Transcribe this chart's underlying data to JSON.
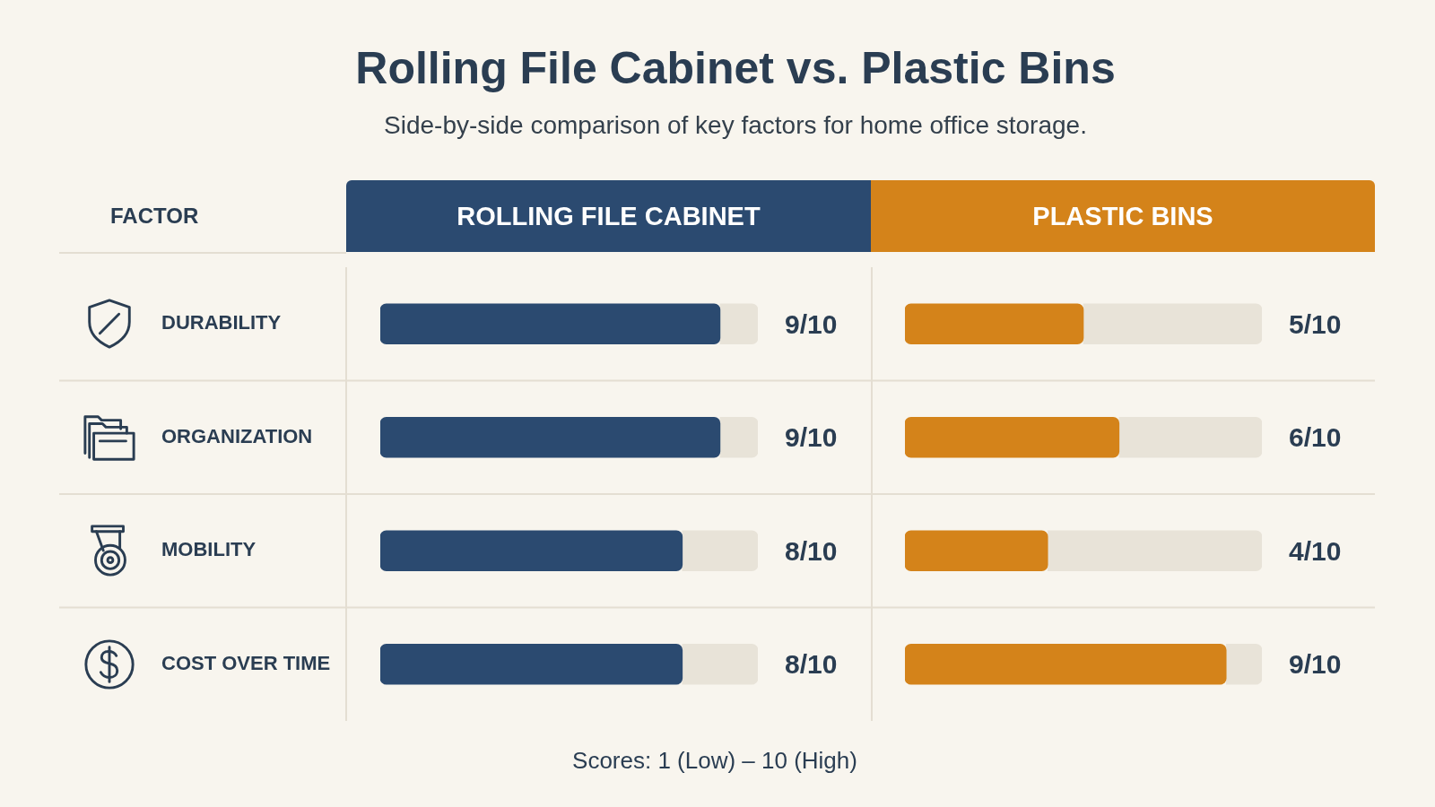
{
  "chart_data": [
    {
      "type": "bar",
      "orientation": "horizontal",
      "stacked": true,
      "title": "Rolling File Cabinet vs. Plastic Bins",
      "subtitle": "Side-by-side comparison of key factors for home office storage.",
      "ylabel": "FACTOR",
      "categories": [
        "DURABILITY",
        "ORGANIZATION",
        "MOBILITY",
        "COST OVER TIME"
      ],
      "series": [
        {
          "name": "ROLLING FILE CABINET",
          "color": "#2b4a70",
          "values": [
            0.9,
            0.9,
            0.8,
            0.8
          ],
          "value_labels": [
            "9/10",
            "9/10",
            "8/10",
            "8/10"
          ]
        },
        {
          "color": "#e8e3d8",
          "values": [
            0.1,
            0.1,
            0.2,
            0.2
          ]
        }
      ],
      "xlim": [
        0,
        1
      ],
      "tick_labels": "y",
      "grid": "y",
      "legend": "top",
      "annotations": [
        "Scores: 1 (Low) – 10 (High)"
      ]
    },
    {
      "type": "bar",
      "orientation": "horizontal",
      "stacked": true,
      "categories": [
        null,
        null,
        null,
        null
      ],
      "series": [
        {
          "name": "PLASTIC BINS",
          "color": "#d4831a",
          "values": [
            0.5,
            0.6,
            0.4,
            0.9
          ],
          "value_labels": [
            "5/10",
            "6/10",
            "4/10",
            "9/10"
          ]
        },
        {
          "color": "#e8e3d8",
          "values": [
            0.5,
            0.4,
            0.6,
            0.1
          ]
        }
      ],
      "xlim": [
        0,
        1
      ],
      "tick_labels": false,
      "grid": "y",
      "legend": "top"
    }
  ]
}
